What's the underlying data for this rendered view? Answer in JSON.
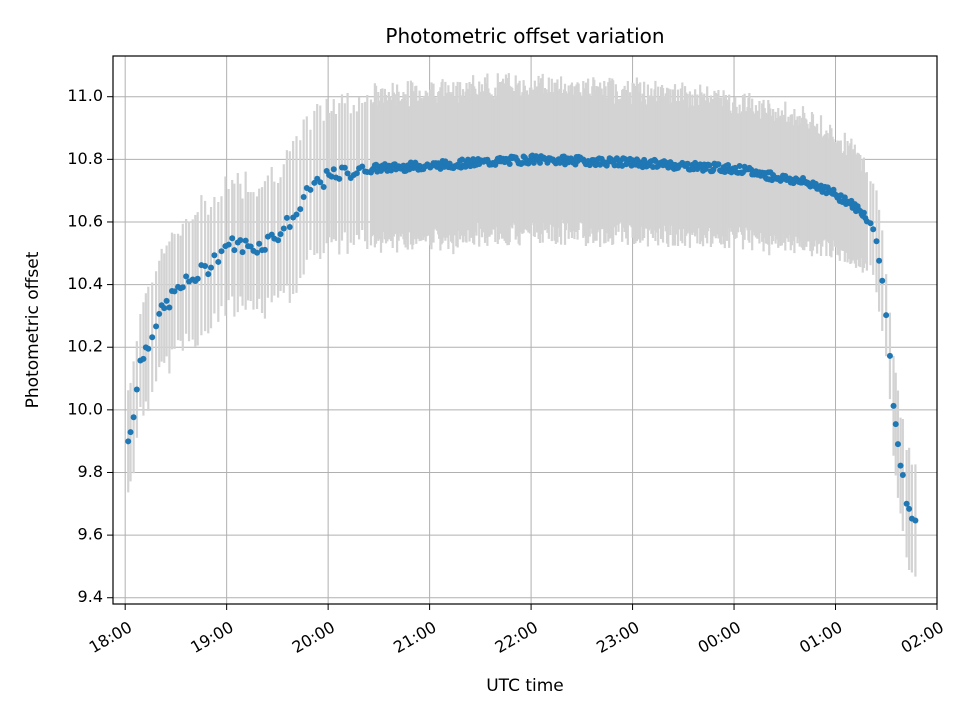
{
  "chart_data": {
    "type": "scatter",
    "title": "Photometric offset variation",
    "xlabel": "UTC time",
    "ylabel": "Photometric offset",
    "x_unit": "hours",
    "xlim": [
      17.88,
      26.0
    ],
    "ylim": [
      9.38,
      11.13
    ],
    "grid": true,
    "x_ticks": [
      {
        "value": 18,
        "label": "18:00"
      },
      {
        "value": 19,
        "label": "19:00"
      },
      {
        "value": 20,
        "label": "20:00"
      },
      {
        "value": 21,
        "label": "21:00"
      },
      {
        "value": 22,
        "label": "22:00"
      },
      {
        "value": 23,
        "label": "23:00"
      },
      {
        "value": 24,
        "label": "00:00"
      },
      {
        "value": 25,
        "label": "01:00"
      },
      {
        "value": 26,
        "label": "02:00"
      }
    ],
    "y_ticks": [
      {
        "value": 9.4,
        "label": "9.4"
      },
      {
        "value": 9.6,
        "label": "9.6"
      },
      {
        "value": 9.8,
        "label": "9.8"
      },
      {
        "value": 10.0,
        "label": "10.0"
      },
      {
        "value": 10.2,
        "label": "10.2"
      },
      {
        "value": 10.4,
        "label": "10.4"
      },
      {
        "value": 10.6,
        "label": "10.6"
      },
      {
        "value": 10.8,
        "label": "10.8"
      },
      {
        "value": 11.0,
        "label": "11.0"
      }
    ],
    "colors": {
      "points": "#1f77b4",
      "errorbars": "#d3d3d3",
      "grid": "#b0b0b0"
    },
    "profile": {
      "x": [
        18.03,
        18.08,
        18.15,
        18.3,
        18.5,
        18.8,
        19.0,
        19.3,
        19.5,
        19.7,
        19.85,
        20.0,
        20.2,
        20.4,
        21.0,
        22.0,
        23.0,
        24.0,
        24.8,
        25.1,
        25.3,
        25.4,
        25.45,
        25.5,
        25.55,
        25.6,
        25.65,
        25.7,
        25.75,
        25.8
      ],
      "y": [
        9.9,
        9.99,
        10.15,
        10.28,
        10.38,
        10.45,
        10.53,
        10.52,
        10.56,
        10.63,
        10.72,
        10.74,
        10.76,
        10.77,
        10.78,
        10.8,
        10.79,
        10.77,
        10.72,
        10.67,
        10.62,
        10.55,
        10.45,
        10.3,
        10.1,
        9.93,
        9.8,
        9.72,
        9.65,
        9.63
      ],
      "err": [
        0.16,
        0.16,
        0.17,
        0.18,
        0.19,
        0.2,
        0.2,
        0.2,
        0.21,
        0.22,
        0.22,
        0.22,
        0.23,
        0.23,
        0.24,
        0.24,
        0.23,
        0.22,
        0.2,
        0.18,
        0.16,
        0.15,
        0.15,
        0.15,
        0.15,
        0.16,
        0.17,
        0.18,
        0.18,
        0.18
      ]
    }
  }
}
